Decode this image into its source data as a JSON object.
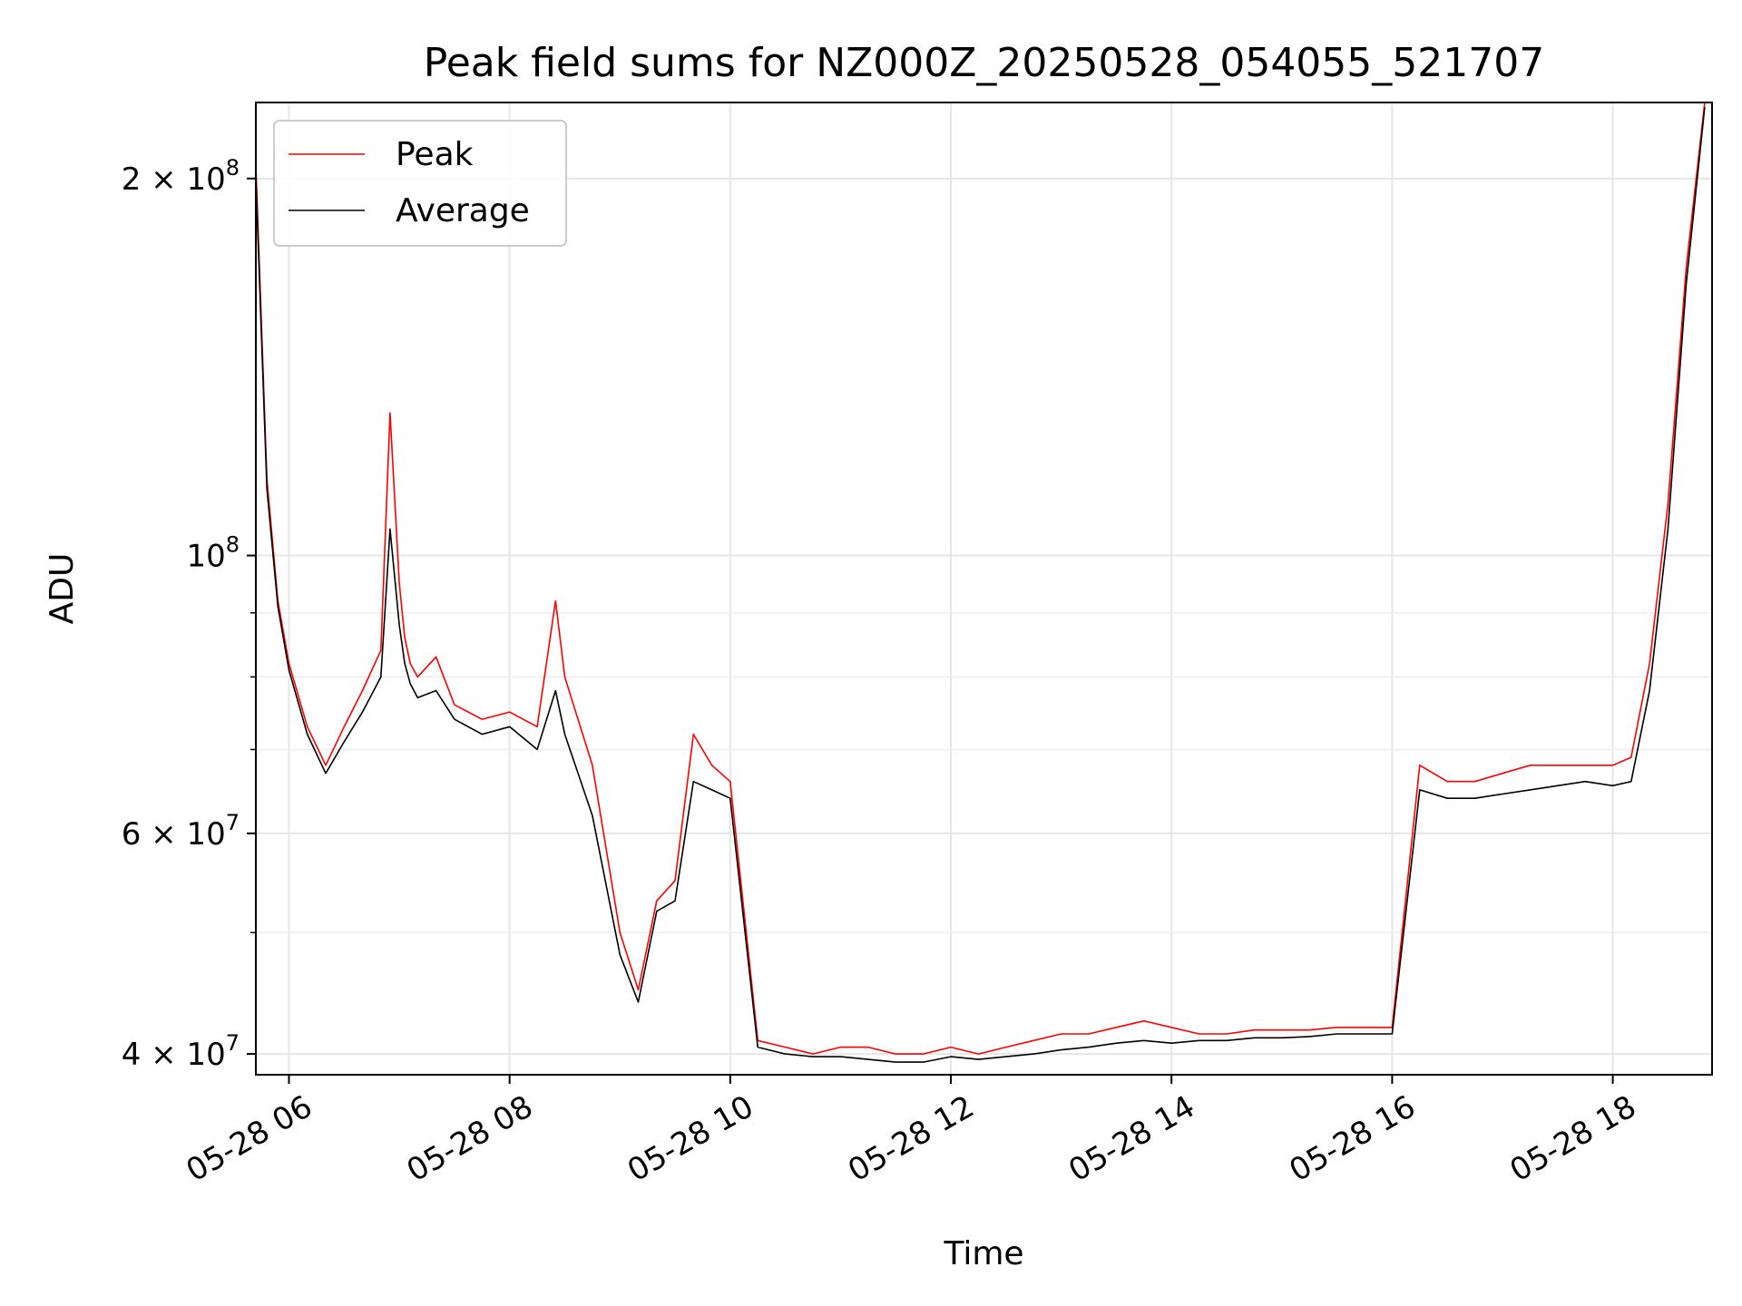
{
  "chart_data": {
    "type": "line",
    "title": "Peak field sums for NZ000Z_20250528_054055_521707",
    "xlabel": "Time",
    "ylabel": "ADU",
    "yscale": "log",
    "ylim": [
      38500000,
      230000000
    ],
    "xlim": [
      "2025-05-28 05:42",
      "2025-05-28 18:54"
    ],
    "x_ticks": [
      "05-28 06",
      "05-28 08",
      "05-28 10",
      "05-28 12",
      "05-28 14",
      "05-28 16",
      "05-28 18"
    ],
    "y_ticks": [
      {
        "value": 40000000,
        "mantissa": "4",
        "exp": "7"
      },
      {
        "value": 60000000,
        "mantissa": "6",
        "exp": "7"
      },
      {
        "value": 100000000,
        "mantissa": "",
        "exp": "8"
      },
      {
        "value": 200000000,
        "mantissa": "2",
        "exp": "8"
      }
    ],
    "y_minor_ticks": [
      50000000,
      70000000,
      80000000,
      90000000
    ],
    "grid": true,
    "legend": "upper-left",
    "series": [
      {
        "name": "Peak",
        "color": "#ff0000",
        "x": [
          "05:42",
          "05:48",
          "05:54",
          "06:00",
          "06:10",
          "06:20",
          "06:30",
          "06:40",
          "06:50",
          "06:55",
          "07:00",
          "07:03",
          "07:06",
          "07:10",
          "07:20",
          "07:30",
          "07:45",
          "08:00",
          "08:15",
          "08:25",
          "08:30",
          "08:45",
          "09:00",
          "09:10",
          "09:20",
          "09:30",
          "09:40",
          "09:50",
          "10:00",
          "10:15",
          "10:30",
          "10:45",
          "11:00",
          "11:15",
          "11:30",
          "11:45",
          "12:00",
          "12:15",
          "12:30",
          "12:45",
          "13:00",
          "13:15",
          "13:30",
          "13:45",
          "14:00",
          "14:15",
          "14:30",
          "14:45",
          "15:00",
          "15:15",
          "15:30",
          "15:45",
          "16:00",
          "16:15",
          "16:30",
          "16:45",
          "17:00",
          "17:15",
          "17:30",
          "17:45",
          "18:00",
          "18:10",
          "18:20",
          "18:30",
          "18:40",
          "18:50"
        ],
        "y": [
          205000000,
          115000000,
          92000000,
          82000000,
          73000000,
          68000000,
          73000000,
          78000000,
          84000000,
          130000000,
          95000000,
          86000000,
          82000000,
          80000000,
          83000000,
          76000000,
          74000000,
          75000000,
          73000000,
          92000000,
          80000000,
          68000000,
          50000000,
          45000000,
          53000000,
          55000000,
          72000000,
          68000000,
          66000000,
          41000000,
          40500000,
          40000000,
          40500000,
          40500000,
          40000000,
          40000000,
          40500000,
          40000000,
          40500000,
          41000000,
          41500000,
          41500000,
          42000000,
          42500000,
          42000000,
          41500000,
          41500000,
          41800000,
          41800000,
          41800000,
          42000000,
          42000000,
          42000000,
          68000000,
          66000000,
          66000000,
          67000000,
          68000000,
          68000000,
          68000000,
          68000000,
          69000000,
          82000000,
          110000000,
          170000000,
          230000000
        ]
      },
      {
        "name": "Average",
        "color": "#000000",
        "x": [
          "05:42",
          "05:48",
          "05:54",
          "06:00",
          "06:10",
          "06:20",
          "06:30",
          "06:40",
          "06:50",
          "06:55",
          "07:00",
          "07:03",
          "07:06",
          "07:10",
          "07:20",
          "07:30",
          "07:45",
          "08:00",
          "08:15",
          "08:25",
          "08:30",
          "08:45",
          "09:00",
          "09:10",
          "09:20",
          "09:30",
          "09:40",
          "09:50",
          "10:00",
          "10:15",
          "10:30",
          "10:45",
          "11:00",
          "11:15",
          "11:30",
          "11:45",
          "12:00",
          "12:15",
          "12:30",
          "12:45",
          "13:00",
          "13:15",
          "13:30",
          "13:45",
          "14:00",
          "14:15",
          "14:30",
          "14:45",
          "15:00",
          "15:15",
          "15:30",
          "15:45",
          "16:00",
          "16:15",
          "16:30",
          "16:45",
          "17:00",
          "17:15",
          "17:30",
          "17:45",
          "18:00",
          "18:10",
          "18:20",
          "18:30",
          "18:40",
          "18:50"
        ],
        "y": [
          200000000,
          113000000,
          91000000,
          81000000,
          72000000,
          67000000,
          71000000,
          75000000,
          80000000,
          105000000,
          88000000,
          82000000,
          79000000,
          77000000,
          78000000,
          74000000,
          72000000,
          73000000,
          70000000,
          78000000,
          72000000,
          62000000,
          48000000,
          44000000,
          52000000,
          53000000,
          66000000,
          65000000,
          64000000,
          40500000,
          40000000,
          39800000,
          39800000,
          39600000,
          39400000,
          39400000,
          39800000,
          39600000,
          39800000,
          40000000,
          40300000,
          40500000,
          40800000,
          41000000,
          40800000,
          41000000,
          41000000,
          41200000,
          41200000,
          41300000,
          41500000,
          41500000,
          41500000,
          65000000,
          64000000,
          64000000,
          64500000,
          65000000,
          65500000,
          66000000,
          65500000,
          66000000,
          78000000,
          105000000,
          165000000,
          228000000
        ]
      }
    ]
  }
}
